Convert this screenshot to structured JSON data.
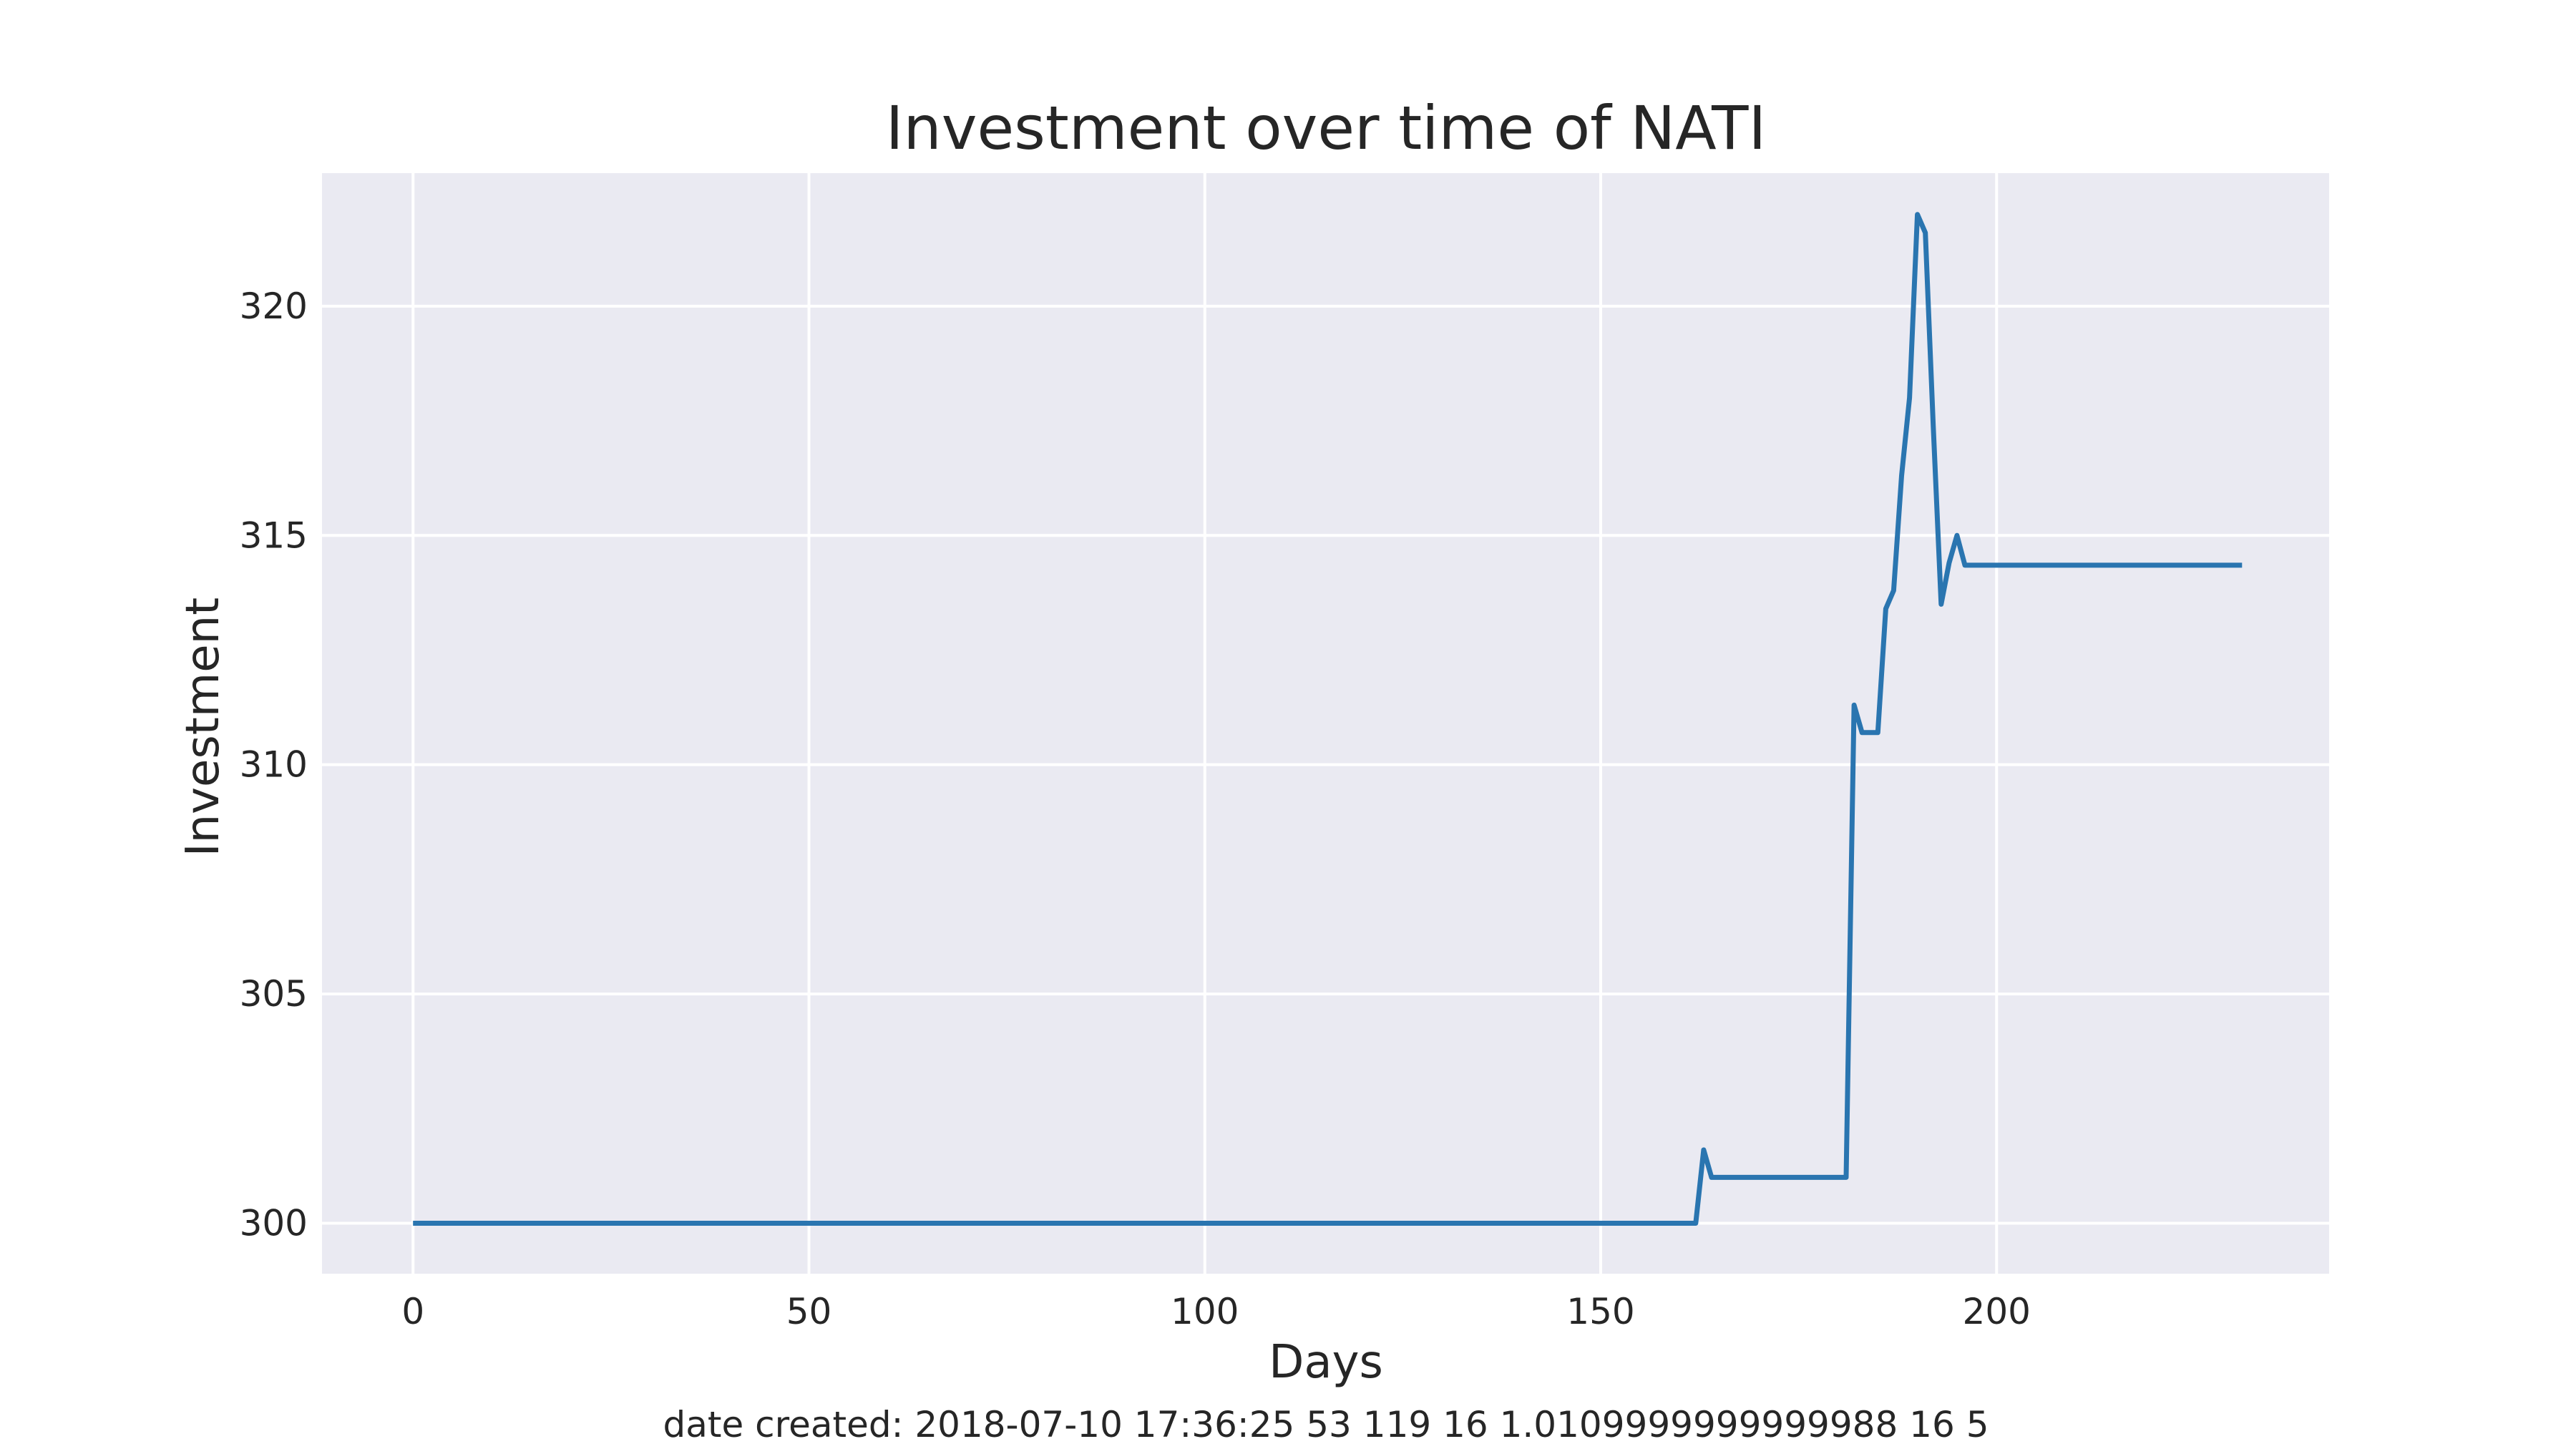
{
  "chart_data": {
    "type": "line",
    "title": "Investment over time of NATI",
    "xlabel": "Days",
    "ylabel": "Investment",
    "xlim": [
      -11.5,
      242
    ],
    "ylim": [
      298.9,
      322.9
    ],
    "xticks": [
      0,
      50,
      100,
      150,
      200
    ],
    "yticks": [
      300,
      305,
      310,
      315,
      320
    ],
    "grid": true,
    "colors": {
      "background": "#eaeaf2",
      "grid": "#ffffff",
      "line": "#2a75b0"
    },
    "series": [
      {
        "x": [
          0,
          50,
          100,
          150,
          162,
          163,
          164,
          170,
          175,
          181,
          182,
          183,
          185,
          186,
          187,
          188,
          189,
          190,
          191,
          192,
          193,
          194,
          195,
          196,
          200,
          231
        ],
        "y": [
          300,
          300,
          300,
          300,
          300,
          301.6,
          301,
          301,
          301,
          301,
          311.3,
          310.7,
          310.7,
          313.4,
          313.8,
          316.3,
          318,
          322,
          321.6,
          317.4,
          313.5,
          314.4,
          315,
          314.35,
          314.35,
          314.35
        ]
      }
    ]
  },
  "footnote": "date created: 2018-07-10 17:36:25 53 119 16 1.0109999999999988 16 5"
}
